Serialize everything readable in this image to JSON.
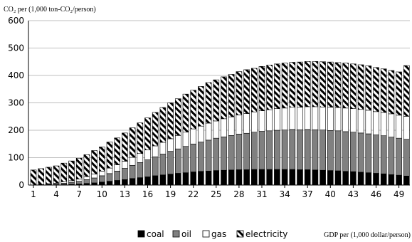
{
  "chart_data": {
    "type": "bar",
    "stacked": true,
    "ylabel": "CO₂ per (1,000 ton-CO₂/person)",
    "xlabel": "GDP per (1,000 dollar/person)",
    "ylim": [
      0,
      600
    ],
    "yticks": [
      "0",
      "100",
      "200",
      "300",
      "400",
      "500",
      "600"
    ],
    "xticks": [
      "1",
      "4",
      "7",
      "10",
      "13",
      "16",
      "19",
      "22",
      "25",
      "28",
      "31",
      "34",
      "37",
      "40",
      "43",
      "46",
      "49"
    ],
    "grid": "horizontal",
    "legend_position": "bottom",
    "x": [
      1,
      2,
      3,
      4,
      5,
      6,
      7,
      8,
      9,
      10,
      11,
      12,
      13,
      14,
      15,
      16,
      17,
      18,
      19,
      20,
      21,
      22,
      23,
      24,
      25,
      26,
      27,
      28,
      29,
      30,
      31,
      32,
      33,
      34,
      35,
      36,
      37,
      38,
      39,
      40,
      41,
      42,
      43,
      44,
      45,
      46,
      47,
      48,
      49,
      50
    ],
    "series": [
      {
        "name": "coal",
        "color": "#000000",
        "pattern": "solid",
        "values": [
          0,
          0,
          1,
          1,
          2,
          3,
          4,
          6,
          8,
          11,
          14,
          17,
          20,
          24,
          27,
          30,
          34,
          37,
          40,
          43,
          45,
          48,
          50,
          51,
          53,
          54,
          55,
          56,
          56,
          57,
          57,
          57,
          57,
          57,
          57,
          56,
          56,
          55,
          54,
          53,
          52,
          50,
          49,
          47,
          45,
          43,
          41,
          38,
          36,
          33
        ]
      },
      {
        "name": "oil",
        "color": "#808080",
        "pattern": "solid",
        "values": [
          0,
          1,
          2,
          3,
          5,
          7,
          10,
          14,
          18,
          23,
          28,
          34,
          41,
          48,
          55,
          62,
          69,
          76,
          83,
          89,
          96,
          102,
          107,
          113,
          118,
          122,
          126,
          130,
          133,
          136,
          139,
          141,
          143,
          144,
          146,
          146,
          147,
          147,
          147,
          146,
          146,
          145,
          144,
          143,
          142,
          140,
          139,
          137,
          135,
          134
        ]
      },
      {
        "name": "gas",
        "color": "#ffffff",
        "pattern": "solid",
        "values": [
          0,
          1,
          2,
          3,
          5,
          6,
          8,
          11,
          14,
          17,
          20,
          23,
          26,
          29,
          33,
          36,
          40,
          43,
          46,
          49,
          52,
          55,
          58,
          62,
          63,
          66,
          68,
          70,
          72,
          74,
          75,
          77,
          79,
          80,
          81,
          82,
          83,
          84,
          84,
          85,
          85,
          86,
          86,
          86,
          86,
          85,
          85,
          85,
          84,
          84
        ]
      },
      {
        "name": "electricity",
        "color": "#000000",
        "pattern": "diagonal",
        "values": [
          55,
          58,
          60,
          63,
          68,
          72,
          76,
          80,
          86,
          88,
          95,
          98,
          103,
          108,
          112,
          117,
          122,
          127,
          131,
          134,
          139,
          141,
          145,
          148,
          150,
          153,
          155,
          158,
          160,
          159,
          162,
          163,
          163,
          164,
          164,
          165,
          165,
          165,
          165,
          165,
          164,
          164,
          163,
          163,
          162,
          161,
          159,
          158,
          158,
          185
        ]
      }
    ]
  }
}
